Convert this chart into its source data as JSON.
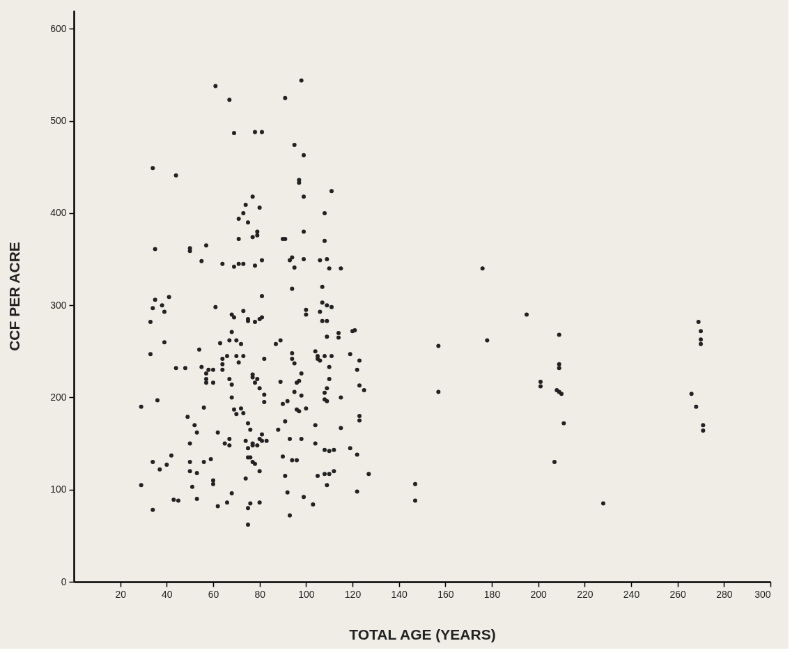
{
  "chart_data": {
    "type": "scatter",
    "xlabel": "TOTAL AGE (YEARS)",
    "ylabel": "CCF PER ACRE",
    "xlim": [
      0,
      300
    ],
    "xticks": [
      20,
      40,
      60,
      80,
      100,
      120,
      140,
      160,
      180,
      200,
      220,
      240,
      260,
      280,
      300
    ],
    "ylim": [
      0,
      620
    ],
    "yticks": [
      0,
      100,
      200,
      300,
      400,
      500,
      600
    ],
    "grid": false,
    "legend": false,
    "marker": "circle",
    "x": [
      29,
      29,
      33,
      33,
      34,
      34,
      34,
      35,
      34,
      35,
      36,
      37,
      38,
      39,
      39,
      40,
      41,
      42,
      43,
      44,
      44,
      45,
      48,
      49,
      50,
      50,
      50,
      50,
      50,
      51,
      52,
      53,
      53,
      53,
      54,
      55,
      55,
      56,
      56,
      57,
      57,
      57,
      57,
      58,
      59,
      60,
      60,
      60,
      60,
      61,
      61,
      62,
      62,
      63,
      64,
      64,
      64,
      64,
      65,
      66,
      66,
      67,
      67,
      67,
      67,
      67,
      68,
      68,
      68,
      68,
      68,
      69,
      69,
      69,
      69,
      70,
      70,
      70,
      71,
      71,
      71,
      71,
      72,
      72,
      73,
      73,
      73,
      73,
      73,
      74,
      74,
      74,
      75,
      75,
      75,
      75,
      75,
      75,
      75,
      75,
      76,
      76,
      76,
      77,
      77,
      77,
      77,
      77,
      77,
      77,
      78,
      78,
      78,
      78,
      78,
      79,
      79,
      79,
      79,
      80,
      80,
      80,
      80,
      80,
      80,
      81,
      81,
      81,
      81,
      81,
      81,
      82,
      82,
      82,
      83,
      87,
      88,
      89,
      89,
      90,
      90,
      90,
      91,
      91,
      91,
      91,
      92,
      92,
      93,
      93,
      93,
      94,
      94,
      94,
      94,
      94,
      95,
      95,
      95,
      95,
      96,
      96,
      96,
      97,
      97,
      97,
      97,
      98,
      98,
      98,
      98,
      99,
      99,
      99,
      99,
      99,
      100,
      100,
      100,
      103,
      104,
      104,
      104,
      105,
      105,
      105,
      106,
      106,
      106,
      107,
      107,
      107,
      108,
      108,
      108,
      108,
      108,
      108,
      108,
      109,
      109,
      109,
      109,
      109,
      109,
      109,
      110,
      110,
      110,
      110,
      110,
      111,
      111,
      111,
      112,
      112,
      114,
      114,
      115,
      115,
      115,
      119,
      119,
      120,
      121,
      122,
      122,
      122,
      123,
      123,
      123,
      123,
      125,
      127,
      147,
      147,
      157,
      157,
      176,
      178,
      195,
      201,
      201,
      207,
      208,
      209,
      209,
      209,
      209,
      210,
      211,
      228,
      266,
      268,
      269,
      270,
      270,
      270,
      271,
      271
    ],
    "series": [
      {
        "color": "#222222",
        "values": [
          190,
          105,
          282,
          247,
          297,
          130,
          78,
          361,
          449,
          306,
          197,
          122,
          300,
          293,
          260,
          127,
          309,
          137,
          89,
          441,
          232,
          88,
          232,
          179,
          362,
          359,
          130,
          120,
          150,
          103,
          170,
          118,
          162,
          90,
          252,
          233,
          348,
          189,
          130,
          226,
          220,
          216,
          365,
          230,
          133,
          216,
          230,
          110,
          106,
          538,
          298,
          162,
          82,
          259,
          345,
          242,
          236,
          230,
          150,
          86,
          245,
          523,
          155,
          148,
          262,
          220,
          214,
          290,
          200,
          96,
          271,
          487,
          342,
          287,
          187,
          245,
          262,
          182,
          372,
          394,
          345,
          238,
          188,
          258,
          400,
          345,
          294,
          245,
          183,
          409,
          153,
          112,
          80,
          390,
          285,
          283,
          172,
          145,
          135,
          62,
          85,
          165,
          135,
          418,
          374,
          222,
          225,
          150,
          148,
          130,
          488,
          343,
          282,
          216,
          128,
          376,
          380,
          220,
          148,
          406,
          285,
          210,
          155,
          120,
          86,
          488,
          349,
          310,
          287,
          160,
          153,
          242,
          195,
          203,
          153,
          258,
          165,
          262,
          217,
          372,
          193,
          136,
          372,
          525,
          174,
          115,
          196,
          97,
          72,
          349,
          155,
          318,
          248,
          352,
          242,
          132,
          474,
          237,
          206,
          341,
          216,
          187,
          132,
          433,
          436,
          185,
          218,
          544,
          226,
          202,
          155,
          380,
          463,
          418,
          350,
          92,
          290,
          295,
          188,
          84,
          170,
          150,
          250,
          245,
          115,
          242,
          240,
          349,
          293,
          320,
          283,
          303,
          400,
          370,
          245,
          205,
          198,
          143,
          117,
          350,
          300,
          283,
          266,
          210,
          196,
          105,
          340,
          233,
          220,
          142,
          117,
          424,
          298,
          245,
          143,
          120,
          270,
          265,
          340,
          200,
          167,
          247,
          145,
          272,
          273,
          98,
          230,
          138,
          240,
          213,
          180,
          175,
          208,
          117,
          106,
          88,
          256,
          206,
          340,
          262,
          290,
          217,
          212,
          130,
          208,
          236,
          232,
          268,
          206,
          204,
          172,
          85,
          204,
          190,
          282,
          272,
          263,
          258,
          170,
          164
        ]
      }
    ]
  }
}
